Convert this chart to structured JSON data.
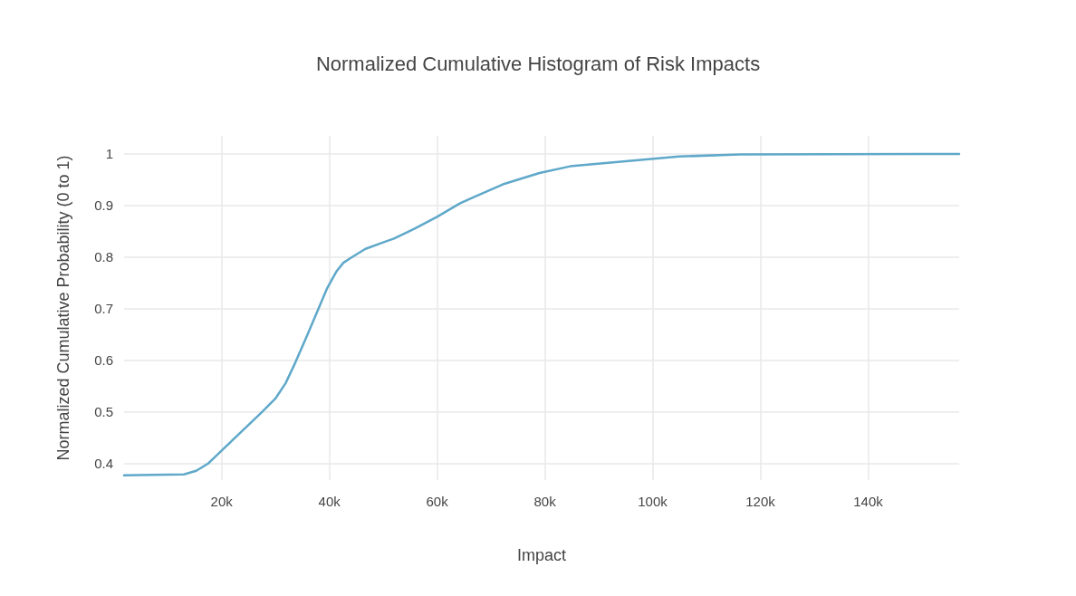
{
  "chart_data": {
    "type": "line",
    "title": "Normalized Cumulative Histogram of Risk Impacts",
    "xlabel": "Impact",
    "ylabel": "Normalized Cumulative Probability (0 to 1)",
    "x": [
      1900,
      13000,
      15300,
      17500,
      20500,
      24200,
      27500,
      30000,
      31900,
      33700,
      35900,
      37900,
      39600,
      41300,
      42600,
      43900,
      46700,
      50100,
      52000,
      56000,
      60000,
      64200,
      67000,
      72200,
      79000,
      84700,
      104900,
      116300,
      156900
    ],
    "series": [
      {
        "color": "#5fa8c9",
        "values": [
          0.377,
          0.379,
          0.386,
          0.4,
          0.43,
          0.467,
          0.5,
          0.526,
          0.556,
          0.596,
          0.649,
          0.698,
          0.74,
          0.772,
          0.789,
          0.798,
          0.816,
          0.829,
          0.836,
          0.856,
          0.878,
          0.904,
          0.917,
          0.941,
          0.963,
          0.976,
          0.995,
          0.999,
          1.0
        ]
      }
    ],
    "xlim": [
      1900,
      156900
    ],
    "ylim": [
      0.368,
      1.035
    ],
    "xticks": [
      {
        "value": 20000,
        "label": "20k"
      },
      {
        "value": 40000,
        "label": "40k"
      },
      {
        "value": 60000,
        "label": "60k"
      },
      {
        "value": 80000,
        "label": "80k"
      },
      {
        "value": 100000,
        "label": "100k"
      },
      {
        "value": 120000,
        "label": "120k"
      },
      {
        "value": 140000,
        "label": "140k"
      }
    ],
    "yticks": [
      0.4,
      0.5,
      0.6,
      0.7,
      0.8,
      0.9,
      1
    ],
    "grid": true,
    "marker": "none",
    "line_style": "solid"
  }
}
